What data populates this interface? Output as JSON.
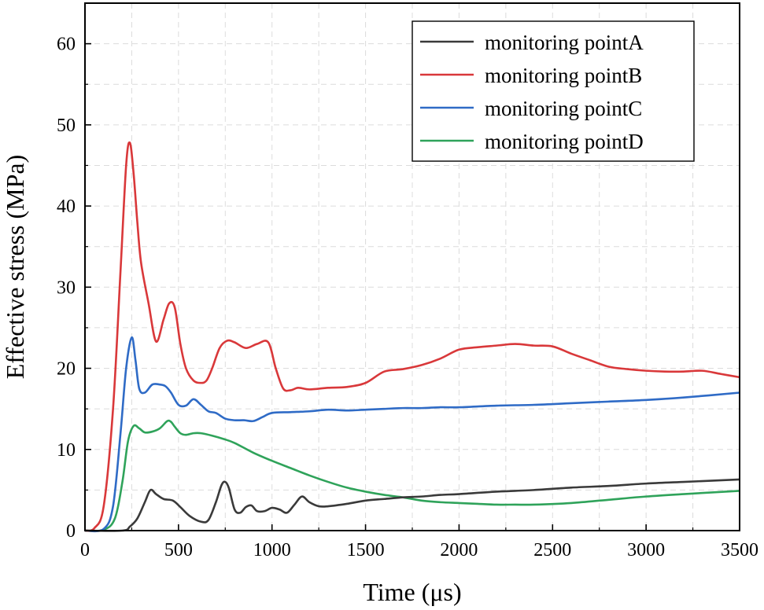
{
  "chart_data": {
    "type": "line",
    "xlabel": "Time (μs)",
    "ylabel": "Effective stress (MPa)",
    "xlim": [
      0,
      3500
    ],
    "ylim": [
      0,
      65
    ],
    "xticks": [
      0,
      500,
      1000,
      1500,
      2000,
      2500,
      3000,
      3500
    ],
    "yticks": [
      0,
      10,
      20,
      30,
      40,
      50,
      60
    ],
    "grid": true,
    "legend_position": "top-right",
    "series": [
      {
        "name": "monitoring pointA",
        "color": "#3a3a3a",
        "x": [
          0,
          200,
          240,
          280,
          320,
          350,
          380,
          420,
          470,
          510,
          560,
          620,
          660,
          700,
          730,
          750,
          770,
          800,
          830,
          860,
          890,
          920,
          960,
          1000,
          1040,
          1080,
          1120,
          1160,
          1200,
          1250,
          1300,
          1400,
          1500,
          1600,
          1700,
          1800,
          1900,
          2000,
          2200,
          2400,
          2600,
          2800,
          3000,
          3200,
          3500
        ],
        "y": [
          0,
          0,
          0.5,
          1.5,
          3.5,
          5.0,
          4.5,
          3.9,
          3.7,
          2.9,
          1.8,
          1.1,
          1.3,
          3.5,
          5.6,
          6.0,
          5.2,
          2.6,
          2.2,
          2.9,
          3.1,
          2.4,
          2.4,
          2.8,
          2.6,
          2.2,
          3.2,
          4.2,
          3.5,
          3.0,
          3.0,
          3.3,
          3.7,
          3.9,
          4.1,
          4.2,
          4.4,
          4.5,
          4.8,
          5.0,
          5.3,
          5.5,
          5.8,
          6.0,
          6.3
        ]
      },
      {
        "name": "monitoring pointB",
        "color": "#d9383a",
        "x": [
          0,
          50,
          100,
          150,
          190,
          220,
          240,
          260,
          280,
          300,
          340,
          380,
          420,
          450,
          480,
          510,
          540,
          580,
          620,
          650,
          680,
          720,
          760,
          800,
          860,
          920,
          980,
          1020,
          1060,
          1100,
          1140,
          1200,
          1300,
          1400,
          1500,
          1600,
          1700,
          1800,
          1900,
          2000,
          2100,
          2200,
          2300,
          2400,
          2500,
          2600,
          2700,
          2800,
          2900,
          3000,
          3100,
          3200,
          3300,
          3400,
          3500
        ],
        "y": [
          0,
          0.3,
          3,
          15,
          32,
          45,
          47.8,
          44,
          38,
          33,
          28,
          23.3,
          26,
          28,
          27.5,
          23,
          20,
          18.5,
          18.2,
          18.5,
          20,
          22.5,
          23.4,
          23.2,
          22.5,
          23,
          23.2,
          20,
          17.5,
          17.3,
          17.6,
          17.4,
          17.6,
          17.7,
          18.2,
          19.6,
          19.9,
          20.4,
          21.2,
          22.3,
          22.6,
          22.8,
          23.0,
          22.8,
          22.7,
          21.8,
          21.0,
          20.2,
          19.9,
          19.7,
          19.6,
          19.6,
          19.7,
          19.3,
          18.9
        ]
      },
      {
        "name": "monitoring pointC",
        "color": "#2f6bc6",
        "x": [
          0,
          100,
          150,
          190,
          220,
          250,
          270,
          290,
          320,
          360,
          400,
          430,
          460,
          500,
          540,
          580,
          620,
          660,
          700,
          750,
          800,
          850,
          900,
          950,
          1000,
          1100,
          1200,
          1300,
          1400,
          1500,
          1600,
          1700,
          1800,
          1900,
          2000,
          2200,
          2400,
          2600,
          2800,
          3000,
          3200,
          3500
        ],
        "y": [
          0,
          0.2,
          3,
          12,
          20,
          23.8,
          21,
          17.5,
          17,
          18,
          18,
          17.8,
          17,
          15.5,
          15.4,
          16.2,
          15.5,
          14.7,
          14.5,
          13.8,
          13.6,
          13.6,
          13.5,
          14.0,
          14.5,
          14.6,
          14.7,
          14.9,
          14.8,
          14.9,
          15.0,
          15.1,
          15.1,
          15.2,
          15.2,
          15.4,
          15.5,
          15.7,
          15.9,
          16.1,
          16.4,
          17.0
        ]
      },
      {
        "name": "monitoring pointD",
        "color": "#2fa35a",
        "x": [
          0,
          100,
          160,
          200,
          230,
          260,
          290,
          320,
          360,
          400,
          440,
          460,
          480,
          510,
          540,
          580,
          620,
          680,
          740,
          800,
          900,
          1000,
          1100,
          1200,
          1300,
          1400,
          1500,
          1600,
          1700,
          1800,
          1900,
          2000,
          2100,
          2200,
          2300,
          2400,
          2600,
          2800,
          3000,
          3200,
          3500
        ],
        "y": [
          0,
          0.1,
          1.5,
          6,
          11,
          12.9,
          12.6,
          12.1,
          12.2,
          12.6,
          13.5,
          13.4,
          12.8,
          12.0,
          11.8,
          12.0,
          12.0,
          11.7,
          11.3,
          10.8,
          9.6,
          8.6,
          7.7,
          6.8,
          6.0,
          5.3,
          4.8,
          4.4,
          4.1,
          3.7,
          3.5,
          3.4,
          3.3,
          3.2,
          3.2,
          3.2,
          3.4,
          3.8,
          4.2,
          4.5,
          4.9
        ]
      }
    ]
  }
}
